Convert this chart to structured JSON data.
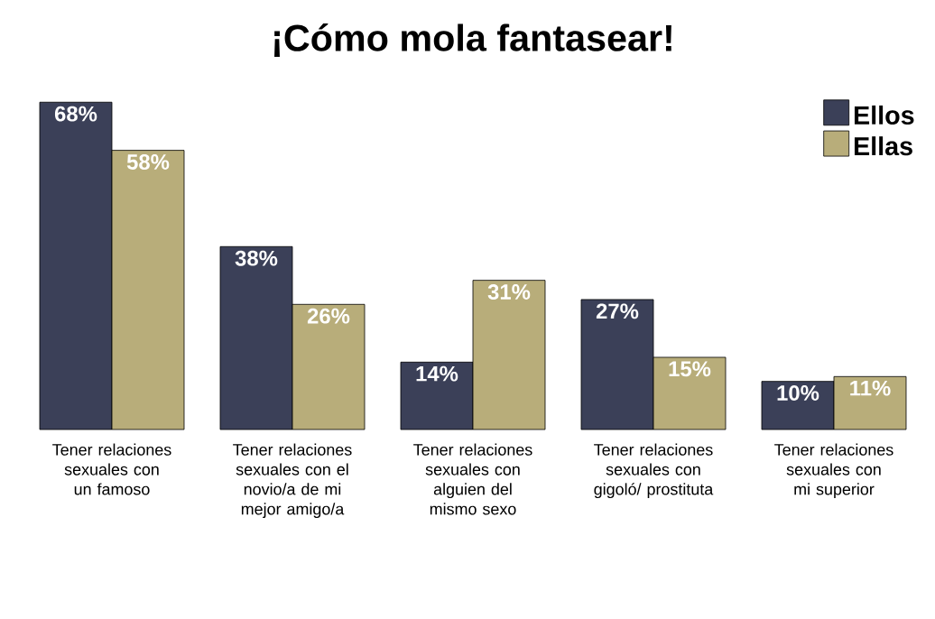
{
  "chart_data": {
    "type": "bar",
    "title": "¡Cómo mola fantasear!",
    "categories": [
      "Tener relaciones sexuales con un famoso",
      "Tener relaciones sexuales con el novio/a de mi mejor amigo/a",
      "Tener relaciones sexuales con alguien del mismo sexo",
      "Tener relaciones sexuales con gigoló/ prostituta",
      "Tener relaciones sexuales con mi superior"
    ],
    "series": [
      {
        "name": "Ellos",
        "color": "#3b4058",
        "values": [
          68,
          38,
          14,
          27,
          10
        ],
        "value_labels": [
          "68%",
          "38%",
          "14%",
          "27%",
          "10%"
        ]
      },
      {
        "name": "Ellas",
        "color": "#b8ad7a",
        "values": [
          58,
          26,
          31,
          15,
          11
        ],
        "value_labels": [
          "58%",
          "26%",
          "31%",
          "15%",
          "11%"
        ]
      }
    ],
    "legend": "top right"
  }
}
